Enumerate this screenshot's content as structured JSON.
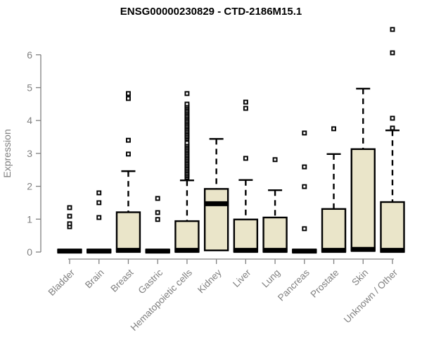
{
  "title": "ENSG00000230829 - CTD-2186M15.1",
  "chart_data": {
    "type": "boxplot",
    "title": "ENSG00000230829 - CTD-2186M15.1",
    "ylabel": "Expression",
    "ylim": [
      0,
      6.9
    ],
    "yticks": [
      0,
      1,
      2,
      3,
      4,
      5,
      6
    ],
    "grid": false,
    "legend": null,
    "categories": [
      "Bladder",
      "Brain",
      "Breast",
      "Gastric",
      "Hematopoietic cells",
      "Kidney",
      "Liver",
      "Lung",
      "Pancreas",
      "Prostate",
      "Skin",
      "Unknown / Other"
    ],
    "series": [
      {
        "category": "Bladder",
        "q1": 0,
        "median": 0.03,
        "q3": 0.06,
        "whisker_high": null,
        "outliers": [
          0.77,
          0.86,
          1.09,
          1.35
        ]
      },
      {
        "category": "Brain",
        "q1": 0,
        "median": 0.03,
        "q3": 0.06,
        "whisker_high": null,
        "outliers": [
          1.05,
          1.5,
          1.8
        ]
      },
      {
        "category": "Breast",
        "q1": 0.02,
        "median": 0.05,
        "q3": 1.21,
        "whisker_high": 2.46,
        "outliers": [
          2.98,
          3.4,
          4.67,
          4.82
        ]
      },
      {
        "category": "Gastric",
        "q1": 0,
        "median": 0.03,
        "q3": 0.06,
        "whisker_high": null,
        "outliers": [
          0.99,
          1.2,
          1.63
        ]
      },
      {
        "category": "Hematopoietic cells",
        "q1": 0.02,
        "median": 0.05,
        "q3": 0.94,
        "whisker_high": 2.18,
        "outliers": [
          2.27,
          2.32,
          2.37,
          2.42,
          2.47,
          2.52,
          2.57,
          2.62,
          2.67,
          2.72,
          2.77,
          2.82,
          2.87,
          2.92,
          2.97,
          3.02,
          3.07,
          3.12,
          3.17,
          3.22,
          3.27,
          3.32,
          3.45,
          3.5,
          3.55,
          3.6,
          3.65,
          3.7,
          3.75,
          3.8,
          3.85,
          3.9,
          3.95,
          4.0,
          4.05,
          4.1,
          4.15,
          4.2,
          4.25,
          4.3,
          4.35,
          4.4,
          4.45,
          4.5,
          4.82
        ]
      },
      {
        "category": "Kidney",
        "q1": 0.05,
        "median": 1.47,
        "q3": 1.92,
        "whisker_high": 3.44,
        "outliers": []
      },
      {
        "category": "Liver",
        "q1": 0.02,
        "median": 0.05,
        "q3": 0.99,
        "whisker_high": 2.19,
        "outliers": [
          2.85,
          4.37,
          4.56
        ]
      },
      {
        "category": "Lung",
        "q1": 0.02,
        "median": 0.05,
        "q3": 1.05,
        "whisker_high": 1.88,
        "outliers": [
          2.81
        ]
      },
      {
        "category": "Pancreas",
        "q1": 0,
        "median": 0.03,
        "q3": 0.06,
        "whisker_high": null,
        "outliers": [
          0.71,
          1.99,
          2.59,
          3.62
        ]
      },
      {
        "category": "Prostate",
        "q1": 0.02,
        "median": 0.05,
        "q3": 1.31,
        "whisker_high": 2.98,
        "outliers": [
          3.75
        ]
      },
      {
        "category": "Skin",
        "q1": 0.05,
        "median": 0.08,
        "q3": 3.13,
        "whisker_high": 4.97,
        "outliers": []
      },
      {
        "category": "Unknown / Other",
        "q1": 0.02,
        "median": 0.05,
        "q3": 1.52,
        "whisker_high": 3.7,
        "outliers": [
          3.77,
          4.07,
          6.06,
          6.77
        ]
      }
    ],
    "style": {
      "box_fill": "#EAE5C9",
      "box_stroke": "#000000",
      "median_color": "#000000",
      "whisker_color": "#000000",
      "outlier_color": "#000000",
      "axis_color": "#808080",
      "tick_label_color": "#808080",
      "title_color": "#000000"
    }
  }
}
